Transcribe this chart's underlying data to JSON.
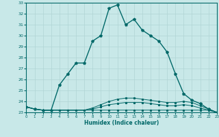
{
  "xlabel": "Humidex (Indice chaleur)",
  "background_color": "#c8e8e8",
  "grid_color": "#b0d4d4",
  "line_color": "#006868",
  "x_hours": [
    0,
    1,
    2,
    3,
    4,
    5,
    6,
    7,
    8,
    9,
    10,
    11,
    12,
    13,
    14,
    15,
    16,
    17,
    18,
    19,
    20,
    21,
    22,
    23
  ],
  "series_flat": [
    23.5,
    23.3,
    23.2,
    23.2,
    23.2,
    23.2,
    23.2,
    23.2,
    23.2,
    23.2,
    23.2,
    23.2,
    23.2,
    23.2,
    23.2,
    23.2,
    23.2,
    23.2,
    23.2,
    23.2,
    23.2,
    23.2,
    23.2,
    23.0
  ],
  "series_mid1": [
    23.5,
    23.3,
    23.2,
    23.2,
    23.2,
    23.2,
    23.2,
    23.2,
    23.3,
    23.5,
    23.7,
    23.8,
    23.9,
    23.9,
    23.9,
    23.8,
    23.7,
    23.6,
    23.6,
    23.7,
    23.6,
    23.4,
    23.2,
    23.0
  ],
  "series_mid2": [
    23.5,
    23.3,
    23.2,
    23.2,
    23.2,
    23.2,
    23.2,
    23.2,
    23.4,
    23.7,
    24.0,
    24.2,
    24.3,
    24.3,
    24.2,
    24.1,
    24.0,
    23.9,
    23.9,
    24.0,
    23.9,
    23.6,
    23.3,
    23.0
  ],
  "series_main": [
    23.5,
    23.3,
    23.2,
    23.2,
    25.5,
    26.5,
    27.5,
    27.5,
    29.5,
    30.0,
    32.5,
    32.8,
    31.0,
    31.5,
    30.5,
    30.0,
    29.5,
    28.5,
    26.5,
    24.7,
    24.1,
    23.8,
    23.3,
    23.0
  ],
  "ylim": [
    23,
    33
  ],
  "xlim": [
    0,
    23
  ],
  "yticks": [
    23,
    24,
    25,
    26,
    27,
    28,
    29,
    30,
    31,
    32,
    33
  ],
  "xticks": [
    0,
    1,
    2,
    3,
    4,
    5,
    6,
    7,
    8,
    9,
    10,
    11,
    12,
    13,
    14,
    15,
    16,
    17,
    18,
    19,
    20,
    21,
    22,
    23
  ]
}
